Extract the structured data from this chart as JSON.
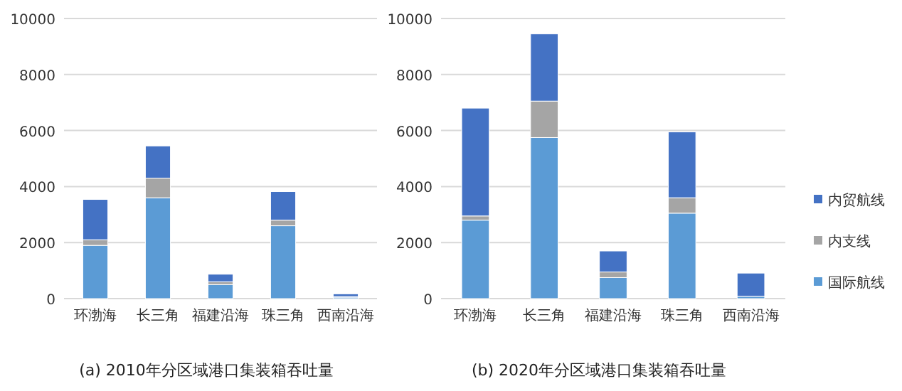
{
  "chart_data": [
    {
      "type": "bar",
      "stacked": true,
      "xlabel": "(a) 2010年分区域港口集装箱吞吐量",
      "categories": [
        "环渤海",
        "长三角",
        "福建沿海",
        "珠三角",
        "西南沿海"
      ],
      "ylim": [
        0,
        10000
      ],
      "yticks": [
        0,
        2000,
        4000,
        6000,
        8000,
        10000
      ],
      "grid": "y",
      "legend": false,
      "series": [
        {
          "color": "#5b9bd5",
          "values": [
            1900,
            3600,
            500,
            2600,
            50
          ]
        },
        {
          "color": "#a5a5a5",
          "values": [
            200,
            700,
            100,
            200,
            20
          ]
        },
        {
          "color": "#4472c4",
          "values": [
            1440,
            1150,
            270,
            1020,
            100
          ]
        }
      ]
    },
    {
      "type": "bar",
      "stacked": true,
      "xlabel": "(b) 2020年分区域港口集装箱吞吐量",
      "categories": [
        "环渤海",
        "长三角",
        "福建沿海",
        "珠三角",
        "西南沿海"
      ],
      "ylim": [
        0,
        10000
      ],
      "yticks": [
        0,
        2000,
        4000,
        6000,
        8000,
        10000
      ],
      "grid": "y",
      "legend": "right",
      "series": [
        {
          "name": "国际航线",
          "color": "#5b9bd5",
          "values": [
            2800,
            5750,
            750,
            3050,
            80
          ]
        },
        {
          "name": "内支线",
          "color": "#a5a5a5",
          "values": [
            150,
            1300,
            200,
            550,
            null
          ]
        },
        {
          "name": "内贸航线",
          "color": "#4472c4",
          "values": [
            3850,
            2400,
            750,
            2350,
            830
          ]
        }
      ]
    }
  ]
}
